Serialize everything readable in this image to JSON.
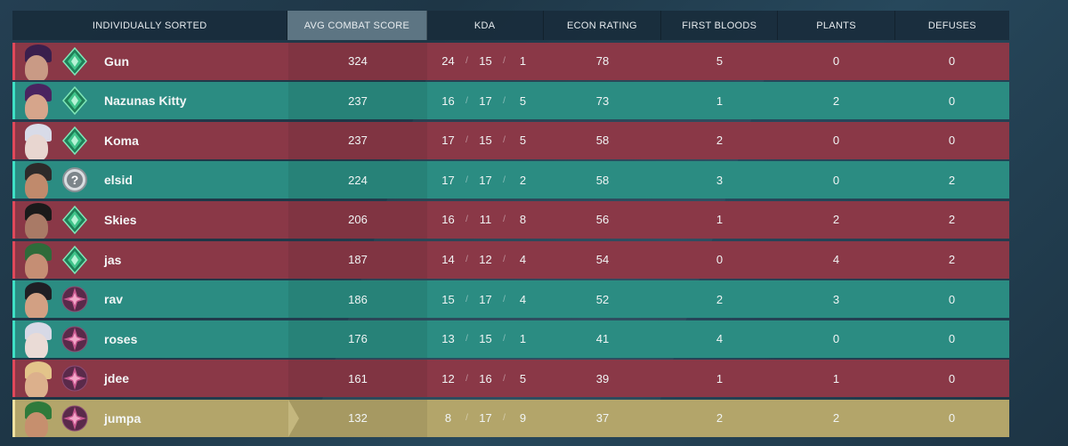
{
  "header": {
    "name_col": "INDIVIDUALLY SORTED",
    "acs_col": "AVG COMBAT SCORE",
    "kda_col": "KDA",
    "econ_col": "ECON RATING",
    "fb_col": "FIRST BLOODS",
    "plants_col": "PLANTS",
    "defuses_col": "DEFUSES"
  },
  "colors": {
    "red_team": "#8a3847",
    "teal_team": "#2b8c82",
    "self_row": "#b3a56a",
    "sorted_header": "#5d7583"
  },
  "players": [
    {
      "name": "Gun",
      "team": "red",
      "rank_icon": "diamond-rank-icon",
      "agent_icon": "agent-portrait-icon",
      "acs": "324",
      "k": "24",
      "d": "15",
      "a": "1",
      "econ": "78",
      "fb": "5",
      "plants": "0",
      "defuses": "0"
    },
    {
      "name": "Nazunas Kitty",
      "team": "teal",
      "rank_icon": "diamond-rank-icon",
      "agent_icon": "agent-portrait-icon",
      "acs": "237",
      "k": "16",
      "d": "17",
      "a": "5",
      "econ": "73",
      "fb": "1",
      "plants": "2",
      "defuses": "0"
    },
    {
      "name": "Koma",
      "team": "red",
      "rank_icon": "diamond-rank-icon",
      "agent_icon": "agent-portrait-icon",
      "acs": "237",
      "k": "17",
      "d": "15",
      "a": "5",
      "econ": "58",
      "fb": "2",
      "plants": "0",
      "defuses": "0"
    },
    {
      "name": "elsid",
      "team": "teal",
      "rank_icon": "unranked-question-icon",
      "agent_icon": "agent-portrait-icon",
      "acs": "224",
      "k": "17",
      "d": "17",
      "a": "2",
      "econ": "58",
      "fb": "3",
      "plants": "0",
      "defuses": "2"
    },
    {
      "name": "Skies",
      "team": "red",
      "rank_icon": "diamond-rank-icon",
      "agent_icon": "agent-portrait-icon",
      "acs": "206",
      "k": "16",
      "d": "11",
      "a": "8",
      "econ": "56",
      "fb": "1",
      "plants": "2",
      "defuses": "2"
    },
    {
      "name": "jas",
      "team": "red",
      "rank_icon": "diamond-rank-icon",
      "agent_icon": "agent-portrait-icon",
      "acs": "187",
      "k": "14",
      "d": "12",
      "a": "4",
      "econ": "54",
      "fb": "0",
      "plants": "4",
      "defuses": "2"
    },
    {
      "name": "rav",
      "team": "teal",
      "rank_icon": "ascendant-rank-icon",
      "agent_icon": "agent-portrait-icon",
      "acs": "186",
      "k": "15",
      "d": "17",
      "a": "4",
      "econ": "52",
      "fb": "2",
      "plants": "3",
      "defuses": "0"
    },
    {
      "name": "roses",
      "team": "teal",
      "rank_icon": "ascendant-rank-icon",
      "agent_icon": "agent-portrait-icon",
      "acs": "176",
      "k": "13",
      "d": "15",
      "a": "1",
      "econ": "41",
      "fb": "4",
      "plants": "0",
      "defuses": "0"
    },
    {
      "name": "jdee",
      "team": "red",
      "rank_icon": "ascendant-rank-icon",
      "agent_icon": "agent-portrait-icon",
      "acs": "161",
      "k": "12",
      "d": "16",
      "a": "5",
      "econ": "39",
      "fb": "1",
      "plants": "1",
      "defuses": "0"
    },
    {
      "name": "jumpa",
      "team": "gold",
      "rank_icon": "ascendant-rank-icon",
      "agent_icon": "agent-portrait-icon",
      "acs": "132",
      "k": "8",
      "d": "17",
      "a": "9",
      "econ": "37",
      "fb": "2",
      "plants": "2",
      "defuses": "0"
    }
  ]
}
